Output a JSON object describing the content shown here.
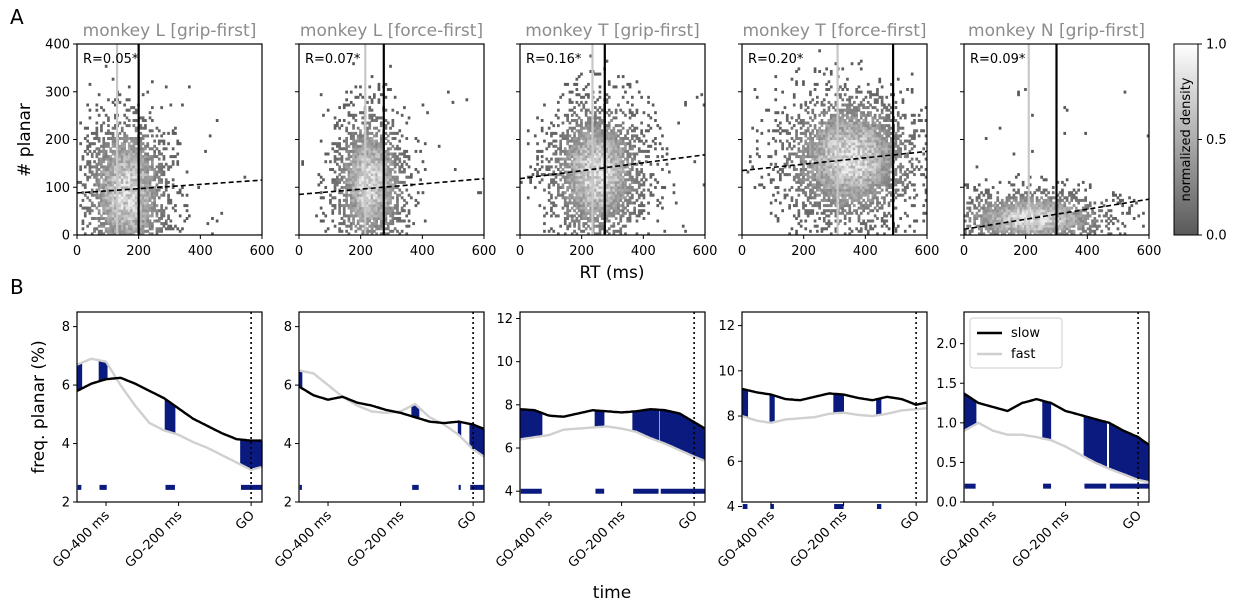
{
  "panels": {
    "A": "A",
    "B": "B"
  },
  "chart_data": [
    {
      "type": "heatmap",
      "panel": "A",
      "ylabel": "# planar",
      "xlabel": "RT (ms)",
      "xlim": [
        0,
        600
      ],
      "ylim": [
        0,
        400
      ],
      "xticks": [
        0,
        200,
        400,
        600
      ],
      "yticks": [
        0,
        100,
        200,
        300,
        400
      ],
      "colorbar": {
        "label": "normalized density",
        "ticks": [
          "0.0",
          "0.5",
          "1.0"
        ],
        "range": [
          0,
          1
        ]
      },
      "subplots": [
        {
          "title": "monkey L [grip-first]",
          "annotation": "R=0.05*",
          "fast_rt_line": 130,
          "slow_rt_line": 200,
          "fit": [
            [
              0,
              88
            ],
            [
              600,
              115
            ]
          ],
          "center": [
            160,
            90
          ],
          "spread": [
            70,
            80
          ]
        },
        {
          "title": "monkey L [force-first]",
          "annotation": "R=0.07*",
          "fast_rt_line": 215,
          "slow_rt_line": 275,
          "fit": [
            [
              0,
              85
            ],
            [
              600,
              118
            ]
          ],
          "center": [
            230,
            110
          ],
          "spread": [
            60,
            75
          ]
        },
        {
          "title": "monkey T [grip-first]",
          "annotation": "R=0.16*",
          "fast_rt_line": 235,
          "slow_rt_line": 275,
          "fit": [
            [
              0,
              118
            ],
            [
              600,
              168
            ]
          ],
          "center": [
            250,
            130
          ],
          "spread": [
            80,
            75
          ]
        },
        {
          "title": "monkey T [force-first]",
          "annotation": "R=0.20*",
          "fast_rt_line": 310,
          "slow_rt_line": 490,
          "fit": [
            [
              0,
              135
            ],
            [
              600,
              175
            ]
          ],
          "center": [
            350,
            160
          ],
          "spread": [
            110,
            70
          ]
        },
        {
          "title": "monkey N [grip-first]",
          "annotation": "R=0.09*",
          "fast_rt_line": 210,
          "slow_rt_line": 300,
          "fit": [
            [
              0,
              12
            ],
            [
              600,
              75
            ]
          ],
          "center": [
            220,
            35
          ],
          "spread": [
            130,
            30
          ]
        }
      ]
    },
    {
      "type": "line",
      "panel": "B",
      "ylabel": "freq. planar (%)",
      "xlabel": "time",
      "xtick_labels": [
        "GO-400 ms",
        "GO-200 ms",
        "GO"
      ],
      "xticks_ms": [
        -400,
        -200,
        0
      ],
      "xlim_ms": [
        -480,
        30
      ],
      "go_line_ms": 0,
      "legend": [
        "slow",
        "fast"
      ],
      "colors": {
        "slow": "#000000",
        "fast": "#d0d0d0",
        "significant": "#0a1a7e"
      },
      "subplots": [
        {
          "ylim": [
            2,
            8.5
          ],
          "yticks": [
            2,
            4,
            6,
            8
          ],
          "slow": [
            [
              -480,
              5.8
            ],
            [
              -440,
              6.05
            ],
            [
              -400,
              6.2
            ],
            [
              -360,
              6.25
            ],
            [
              -320,
              6.05
            ],
            [
              -280,
              5.8
            ],
            [
              -240,
              5.55
            ],
            [
              -200,
              5.2
            ],
            [
              -160,
              4.85
            ],
            [
              -120,
              4.6
            ],
            [
              -80,
              4.35
            ],
            [
              -40,
              4.15
            ],
            [
              0,
              4.1
            ],
            [
              30,
              4.1
            ]
          ],
          "fast": [
            [
              -480,
              6.7
            ],
            [
              -440,
              6.9
            ],
            [
              -400,
              6.8
            ],
            [
              -360,
              6.0
            ],
            [
              -320,
              5.3
            ],
            [
              -280,
              4.7
            ],
            [
              -240,
              4.45
            ],
            [
              -200,
              4.3
            ],
            [
              -160,
              4.05
            ],
            [
              -120,
              3.85
            ],
            [
              -80,
              3.6
            ],
            [
              -40,
              3.35
            ],
            [
              0,
              3.1
            ],
            [
              30,
              3.2
            ]
          ],
          "sig_y": 2.5,
          "sig": [
            [
              -478,
              -468
            ],
            [
              -418,
              -398
            ],
            [
              -236,
              -210
            ],
            [
              -28,
              30
            ]
          ]
        },
        {
          "ylim": [
            2,
            8.5
          ],
          "yticks": [
            2,
            4,
            6,
            8
          ],
          "slow": [
            [
              -480,
              5.95
            ],
            [
              -440,
              5.65
            ],
            [
              -400,
              5.5
            ],
            [
              -360,
              5.6
            ],
            [
              -320,
              5.4
            ],
            [
              -280,
              5.3
            ],
            [
              -240,
              5.15
            ],
            [
              -200,
              5.05
            ],
            [
              -160,
              4.9
            ],
            [
              -120,
              4.75
            ],
            [
              -80,
              4.7
            ],
            [
              -40,
              4.75
            ],
            [
              0,
              4.65
            ],
            [
              30,
              4.5
            ]
          ],
          "fast": [
            [
              -480,
              6.5
            ],
            [
              -440,
              6.4
            ],
            [
              -400,
              6.0
            ],
            [
              -360,
              5.6
            ],
            [
              -320,
              5.3
            ],
            [
              -280,
              5.1
            ],
            [
              -240,
              5.05
            ],
            [
              -200,
              5.1
            ],
            [
              -160,
              5.35
            ],
            [
              -120,
              4.9
            ],
            [
              -80,
              4.65
            ],
            [
              -40,
              4.3
            ],
            [
              0,
              3.8
            ],
            [
              30,
              3.55
            ]
          ],
          "sig_y": 2.5,
          "sig": [
            [
              -478,
              -472
            ],
            [
              -168,
              -150
            ],
            [
              -40,
              -34
            ],
            [
              -8,
              30
            ]
          ]
        },
        {
          "ylim": [
            3.5,
            12.3
          ],
          "yticks": [
            4,
            6,
            8,
            10,
            12
          ],
          "slow": [
            [
              -480,
              7.8
            ],
            [
              -440,
              7.75
            ],
            [
              -400,
              7.5
            ],
            [
              -360,
              7.45
            ],
            [
              -320,
              7.6
            ],
            [
              -280,
              7.75
            ],
            [
              -240,
              7.7
            ],
            [
              -200,
              7.65
            ],
            [
              -160,
              7.7
            ],
            [
              -120,
              7.8
            ],
            [
              -80,
              7.75
            ],
            [
              -40,
              7.6
            ],
            [
              0,
              7.2
            ],
            [
              30,
              6.9
            ]
          ],
          "fast": [
            [
              -480,
              6.4
            ],
            [
              -440,
              6.5
            ],
            [
              -400,
              6.6
            ],
            [
              -360,
              6.85
            ],
            [
              -320,
              6.9
            ],
            [
              -280,
              6.95
            ],
            [
              -240,
              7.0
            ],
            [
              -200,
              6.9
            ],
            [
              -160,
              6.75
            ],
            [
              -120,
              6.45
            ],
            [
              -80,
              6.2
            ],
            [
              -40,
              5.9
            ],
            [
              0,
              5.6
            ],
            [
              30,
              5.4
            ]
          ],
          "sig_y": 4.0,
          "sig": [
            [
              -478,
              -420
            ],
            [
              -272,
              -248
            ],
            [
              -168,
              -98
            ],
            [
              -92,
              30
            ]
          ]
        },
        {
          "ylim": [
            4.2,
            12.6
          ],
          "yticks": [
            4,
            6,
            8,
            10,
            12
          ],
          "slow": [
            [
              -480,
              9.2
            ],
            [
              -440,
              9.05
            ],
            [
              -400,
              8.95
            ],
            [
              -360,
              8.75
            ],
            [
              -320,
              8.7
            ],
            [
              -280,
              8.85
            ],
            [
              -240,
              9.0
            ],
            [
              -200,
              8.95
            ],
            [
              -160,
              8.8
            ],
            [
              -120,
              8.7
            ],
            [
              -80,
              8.85
            ],
            [
              -40,
              8.75
            ],
            [
              0,
              8.5
            ],
            [
              30,
              8.6
            ]
          ],
          "fast": [
            [
              -480,
              8.0
            ],
            [
              -440,
              7.8
            ],
            [
              -400,
              7.7
            ],
            [
              -360,
              7.85
            ],
            [
              -320,
              7.9
            ],
            [
              -280,
              7.95
            ],
            [
              -240,
              8.1
            ],
            [
              -200,
              8.15
            ],
            [
              -160,
              8.05
            ],
            [
              -120,
              8.0
            ],
            [
              -80,
              8.1
            ],
            [
              -40,
              8.25
            ],
            [
              0,
              8.3
            ],
            [
              30,
              8.35
            ]
          ],
          "sig_y": 4.0,
          "sig": [
            [
              -478,
              -465
            ],
            [
              -402,
              -392
            ],
            [
              -226,
              -200
            ],
            [
              -108,
              -96
            ]
          ]
        },
        {
          "ylim": [
            0,
            2.4
          ],
          "yticks": [
            0.0,
            0.5,
            1.0,
            1.5,
            2.0
          ],
          "slow": [
            [
              -480,
              1.37
            ],
            [
              -440,
              1.25
            ],
            [
              -400,
              1.2
            ],
            [
              -360,
              1.15
            ],
            [
              -320,
              1.25
            ],
            [
              -280,
              1.3
            ],
            [
              -240,
              1.25
            ],
            [
              -200,
              1.15
            ],
            [
              -160,
              1.1
            ],
            [
              -120,
              1.05
            ],
            [
              -80,
              1.0
            ],
            [
              -40,
              0.9
            ],
            [
              0,
              0.82
            ],
            [
              30,
              0.72
            ]
          ],
          "fast": [
            [
              -480,
              0.9
            ],
            [
              -440,
              1.0
            ],
            [
              -400,
              0.9
            ],
            [
              -360,
              0.85
            ],
            [
              -320,
              0.85
            ],
            [
              -280,
              0.82
            ],
            [
              -240,
              0.78
            ],
            [
              -200,
              0.7
            ],
            [
              -160,
              0.6
            ],
            [
              -120,
              0.5
            ],
            [
              -80,
              0.42
            ],
            [
              -40,
              0.35
            ],
            [
              0,
              0.28
            ],
            [
              30,
              0.25
            ]
          ],
          "sig_y": 0.2,
          "sig": [
            [
              -478,
              -448
            ],
            [
              -262,
              -240
            ],
            [
              -148,
              -88
            ],
            [
              -78,
              30
            ]
          ]
        }
      ]
    }
  ]
}
